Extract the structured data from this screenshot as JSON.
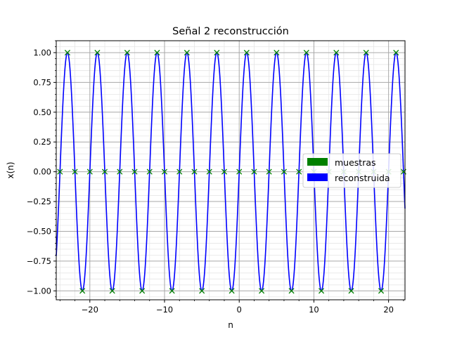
{
  "chart_data": {
    "type": "line",
    "title": "Señal 2 reconstrucción",
    "xlabel": "n",
    "ylabel": "x(n)",
    "xlim": [
      -24.5,
      22.2
    ],
    "ylim": [
      -1.075,
      1.1
    ],
    "x_ticks": [
      -20,
      -10,
      0,
      10,
      20
    ],
    "x_tick_labels": [
      "−20",
      "−10",
      "0",
      "10",
      "20"
    ],
    "y_ticks": [
      -1.0,
      -0.75,
      -0.5,
      -0.25,
      0.0,
      0.25,
      0.5,
      0.75,
      1.0
    ],
    "y_tick_labels": [
      "−1.00",
      "−0.75",
      "−0.50",
      "−0.25",
      "0.00",
      "0.25",
      "0.50",
      "0.75",
      "1.00"
    ],
    "grid": "major and minor",
    "legend_position": "center-right",
    "series": [
      {
        "name": "muestras",
        "kind": "samples",
        "marker": "x",
        "color": "#008000",
        "x": [
          -24,
          -23,
          -22,
          -21,
          -20,
          -19,
          -18,
          -17,
          -16,
          -15,
          -14,
          -13,
          -12,
          -11,
          -10,
          -9,
          -8,
          -7,
          -6,
          -5,
          -4,
          -3,
          -2,
          -1,
          0,
          1,
          2,
          3,
          4,
          5,
          6,
          7,
          8,
          9,
          10,
          11,
          12,
          13,
          14,
          15,
          16,
          17,
          18,
          19,
          20,
          21,
          22
        ],
        "values": [
          0,
          1,
          0,
          -1,
          0,
          1,
          0,
          -1,
          0,
          1,
          0,
          -1,
          0,
          1,
          0,
          -1,
          0,
          1,
          0,
          -1,
          0,
          1,
          0,
          -1,
          0,
          1,
          0,
          -1,
          0,
          1,
          0,
          -1,
          0,
          1,
          0,
          -1,
          0,
          1,
          0,
          -1,
          0,
          1,
          0,
          -1,
          0,
          1,
          0
        ]
      },
      {
        "name": "reconstruida",
        "kind": "curve",
        "expression": "sin(pi*n/2)",
        "color": "#0000ff",
        "x_range": [
          -24.5,
          22.2
        ]
      }
    ]
  }
}
